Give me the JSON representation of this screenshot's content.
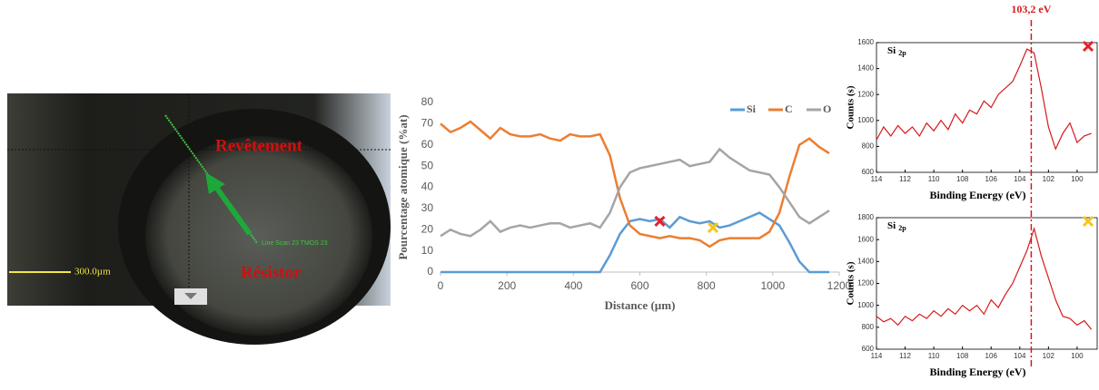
{
  "image": {
    "coating_label": "Revêtement",
    "resistor_label": "Résistor",
    "scale_label": "300.0µm",
    "scan_label": "Line Scan 23 TMOS 23"
  },
  "annotation": {
    "label": "103,2 eV",
    "value": 103.2
  },
  "chart_data": [
    {
      "type": "line",
      "xlabel": "Distance (µm)",
      "ylabel": "Pourcentage atomique (%at)",
      "x": [
        0,
        30,
        60,
        90,
        120,
        150,
        180,
        210,
        240,
        270,
        300,
        330,
        360,
        390,
        420,
        450,
        480,
        510,
        540,
        570,
        600,
        630,
        660,
        690,
        720,
        750,
        780,
        810,
        840,
        870,
        900,
        930,
        960,
        990,
        1020,
        1050,
        1080,
        1110,
        1140,
        1170
      ],
      "series": [
        {
          "name": "Si",
          "color": "#5b9bd5",
          "values": [
            0,
            0,
            0,
            0,
            0,
            0,
            0,
            0,
            0,
            0,
            0,
            0,
            0,
            0,
            0,
            0,
            0,
            8,
            18,
            24,
            25,
            24,
            25,
            21,
            26,
            24,
            23,
            24,
            21,
            22,
            24,
            26,
            28,
            25,
            22,
            14,
            5,
            0,
            0,
            0
          ]
        },
        {
          "name": "C",
          "color": "#ed7d31",
          "values": [
            70,
            66,
            68,
            71,
            67,
            63,
            68,
            65,
            64,
            64,
            65,
            63,
            62,
            65,
            64,
            64,
            65,
            55,
            35,
            22,
            18,
            17,
            16,
            17,
            16,
            16,
            15,
            12,
            15,
            16,
            16,
            16,
            16,
            19,
            28,
            45,
            60,
            63,
            59,
            56
          ]
        },
        {
          "name": "O",
          "color": "#a5a5a5",
          "values": [
            17,
            20,
            18,
            17,
            20,
            24,
            19,
            21,
            22,
            21,
            22,
            23,
            23,
            21,
            22,
            23,
            21,
            28,
            40,
            47,
            49,
            50,
            51,
            52,
            53,
            50,
            51,
            52,
            58,
            54,
            51,
            48,
            47,
            46,
            40,
            33,
            26,
            23,
            26,
            29
          ]
        }
      ],
      "markers": [
        {
          "x": 660,
          "y": 24,
          "color": "#e8202a"
        },
        {
          "x": 820,
          "y": 21,
          "color": "#f5c518"
        }
      ],
      "xlim": [
        0,
        1200
      ],
      "xticks": [
        0,
        200,
        400,
        600,
        800,
        1000,
        1200
      ],
      "ylim": [
        0,
        80
      ],
      "yticks": [
        0,
        10,
        20,
        30,
        40,
        50,
        60,
        70,
        80
      ],
      "legend": "top-right",
      "grid": false
    },
    {
      "type": "spectrum",
      "title": "Si",
      "title_sub": "2p",
      "xlabel": "Binding Energy (eV)",
      "ylabel": "Counts (s)",
      "color": "#d7191c",
      "marker_color": "#e8202a",
      "x": [
        114,
        113.5,
        113,
        112.5,
        112,
        111.5,
        111,
        110.5,
        110,
        109.5,
        109,
        108.5,
        108,
        107.5,
        107,
        106.5,
        106,
        105.5,
        105,
        104.5,
        104,
        103.5,
        103,
        102.5,
        102,
        101.5,
        101,
        100.5,
        100,
        99.5,
        99
      ],
      "values": [
        850,
        950,
        880,
        960,
        900,
        950,
        880,
        980,
        920,
        1000,
        930,
        1050,
        980,
        1080,
        1050,
        1150,
        1100,
        1200,
        1250,
        1300,
        1420,
        1550,
        1520,
        1250,
        950,
        780,
        900,
        980,
        830,
        880,
        900
      ],
      "xlim": [
        114,
        98.6
      ],
      "xticks": [
        114,
        112,
        110,
        108,
        106,
        104,
        102,
        100
      ],
      "ylim": [
        600,
        1600
      ],
      "yticks": [
        600,
        800,
        1000,
        1200,
        1400,
        1600
      ]
    },
    {
      "type": "spectrum",
      "title": "Si",
      "title_sub": "2p",
      "xlabel": "Binding Energy (eV)",
      "ylabel": "Counts (s)",
      "color": "#d7191c",
      "marker_color": "#f5c518",
      "x": [
        114,
        113.5,
        113,
        112.5,
        112,
        111.5,
        111,
        110.5,
        110,
        109.5,
        109,
        108.5,
        108,
        107.5,
        107,
        106.5,
        106,
        105.5,
        105,
        104.5,
        104,
        103.5,
        103,
        102.5,
        102,
        101.5,
        101,
        100.5,
        100,
        99.5,
        99
      ],
      "values": [
        900,
        850,
        880,
        820,
        900,
        860,
        920,
        880,
        950,
        900,
        970,
        920,
        1000,
        950,
        1000,
        920,
        1050,
        980,
        1100,
        1200,
        1350,
        1500,
        1700,
        1450,
        1250,
        1050,
        900,
        880,
        820,
        860,
        780
      ],
      "xlim": [
        114,
        98.6
      ],
      "xticks": [
        114,
        112,
        110,
        108,
        106,
        104,
        102,
        100
      ],
      "ylim": [
        600,
        1800
      ],
      "yticks": [
        600,
        800,
        1000,
        1200,
        1400,
        1600,
        1800
      ]
    }
  ]
}
